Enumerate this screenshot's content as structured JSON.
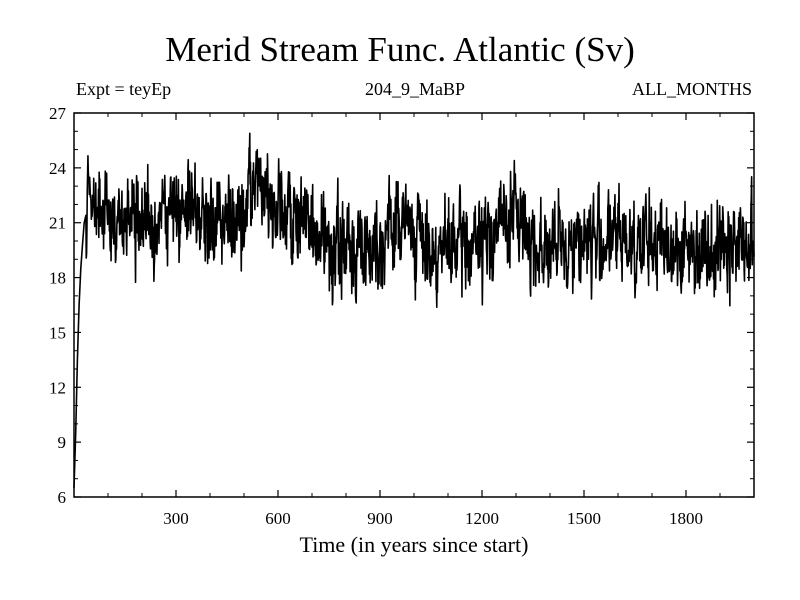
{
  "chart_data": {
    "type": "line",
    "title": "Merid Stream Func. Atlantic (Sv)",
    "subtitle_left": "Expt = teyEp",
    "subtitle_center": "204_9_MaBP",
    "subtitle_right": "ALL_MONTHS",
    "xlabel": "Time (in years since start)",
    "ylabel": "",
    "xlim": [
      0,
      2000
    ],
    "ylim": [
      6,
      27
    ],
    "xticks": [
      300,
      600,
      900,
      1200,
      1500,
      1800
    ],
    "yticks": [
      6,
      9,
      12,
      15,
      18,
      21,
      24,
      27
    ],
    "series": [
      {
        "name": "Merid Stream Func. Atlantic",
        "x": [
          0,
          5,
          10,
          15,
          20,
          25,
          30,
          40,
          50,
          60,
          80,
          100,
          120,
          150,
          180,
          200,
          230,
          260,
          290,
          300,
          330,
          360,
          400,
          450,
          500,
          530,
          540,
          550,
          580,
          600,
          650,
          700,
          750,
          800,
          850,
          900,
          950,
          970,
          1000,
          1050,
          1100,
          1150,
          1200,
          1250,
          1300,
          1350,
          1400,
          1450,
          1500,
          1550,
          1600,
          1650,
          1700,
          1750,
          1800,
          1850,
          1900,
          1950,
          2000
        ],
        "values": [
          6.5,
          9.5,
          13.5,
          16.5,
          18.5,
          19.8,
          21.0,
          21.8,
          22.0,
          21.5,
          21.2,
          21.3,
          21.0,
          20.8,
          21.0,
          20.8,
          21.3,
          21.2,
          21.5,
          22.0,
          21.8,
          21.5,
          21.5,
          21.3,
          21.0,
          23.0,
          23.5,
          23.0,
          22.0,
          21.8,
          21.0,
          20.5,
          19.8,
          19.6,
          19.8,
          20.0,
          21.2,
          21.0,
          20.5,
          19.5,
          19.4,
          19.8,
          19.8,
          21.0,
          21.5,
          20.0,
          19.5,
          19.8,
          20.2,
          20.0,
          20.2,
          20.0,
          19.8,
          19.8,
          19.5,
          19.8,
          19.8,
          20.0,
          19.4
        ],
        "resolution_note_years": 1
      }
    ]
  }
}
